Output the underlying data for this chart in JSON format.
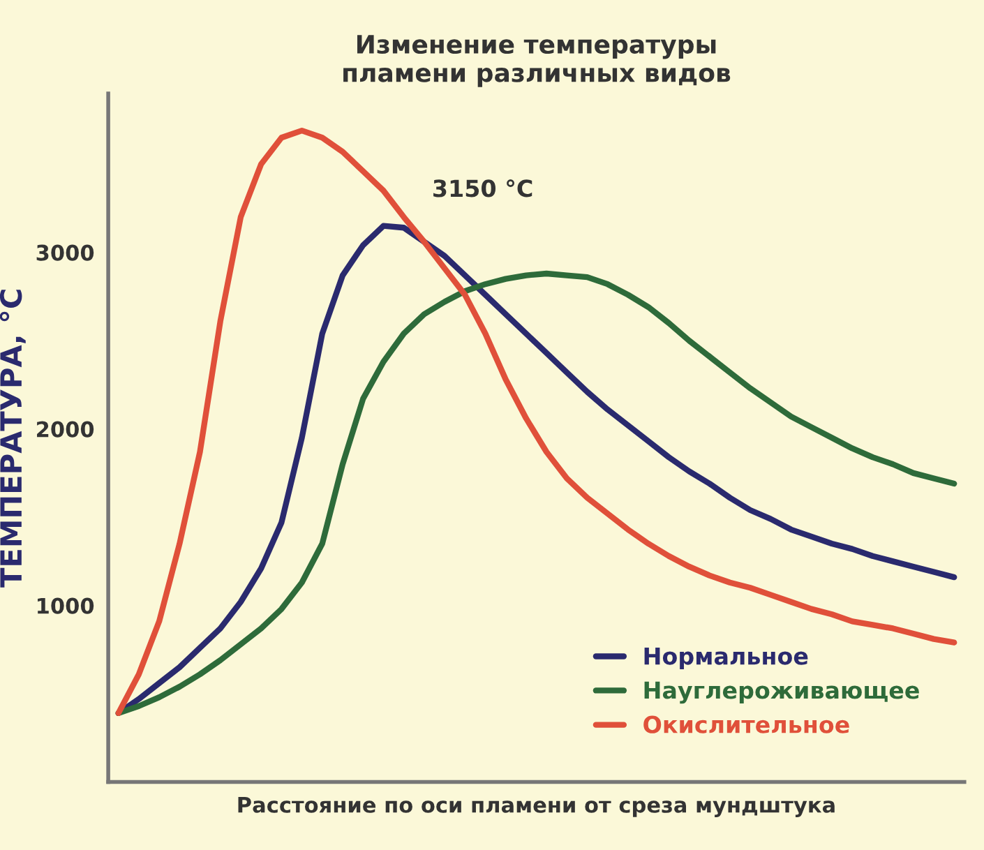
{
  "chart_data": {
    "type": "line",
    "title": "Изменение температуры\nпламени различных видов",
    "xlabel": "Расстояние по оси пламени от среза мундштука",
    "ylabel": "ТЕМПЕРАТУРА, °С",
    "categories": [
      null,
      null,
      null,
      null,
      null,
      null,
      null,
      null,
      null,
      null,
      null,
      null,
      null,
      null,
      null,
      null,
      null,
      null,
      null,
      null,
      null,
      null,
      null,
      null,
      null,
      null,
      null,
      null,
      null,
      null,
      null,
      null,
      null,
      null,
      null,
      null,
      null,
      null,
      null,
      null,
      null,
      null
    ],
    "series": [
      {
        "name": "Нормальное",
        "color": "#2a2a6e",
        "values": [
          390,
          470,
          560,
          650,
          760,
          870,
          1020,
          1210,
          1470,
          1950,
          2540,
          2870,
          3040,
          3150,
          3140,
          3060,
          2980,
          2870,
          2760,
          2650,
          2540,
          2430,
          2320,
          2210,
          2110,
          2020,
          1930,
          1840,
          1760,
          1690,
          1610,
          1540,
          1490,
          1430,
          1390,
          1350,
          1320,
          1280,
          1250,
          1220,
          1190,
          1160
        ]
      },
      {
        "name": "Науглероживающее",
        "color": "#2e6b3a",
        "values": [
          390,
          430,
          480,
          540,
          610,
          690,
          780,
          870,
          980,
          1130,
          1350,
          1800,
          2170,
          2380,
          2540,
          2650,
          2720,
          2780,
          2820,
          2850,
          2870,
          2880,
          2870,
          2860,
          2820,
          2760,
          2690,
          2600,
          2500,
          2410,
          2320,
          2230,
          2150,
          2070,
          2010,
          1950,
          1890,
          1840,
          1800,
          1750,
          1720,
          1690
        ]
      },
      {
        "name": "Окислительное",
        "color": "#e0503a",
        "values": [
          390,
          610,
          910,
          1350,
          1870,
          2610,
          3200,
          3500,
          3650,
          3690,
          3650,
          3570,
          3460,
          3350,
          3200,
          3060,
          2910,
          2760,
          2540,
          2280,
          2060,
          1870,
          1720,
          1610,
          1520,
          1430,
          1350,
          1280,
          1220,
          1170,
          1130,
          1100,
          1060,
          1020,
          980,
          950,
          910,
          890,
          870,
          840,
          810,
          790
        ]
      }
    ],
    "ylim": [
      0,
      3900
    ],
    "yticks": [
      1000,
      2000,
      3000
    ],
    "grid": false,
    "legend": "bottom right",
    "line_style": "solid",
    "marker": "none",
    "annotations": [
      "3150 °С"
    ]
  }
}
